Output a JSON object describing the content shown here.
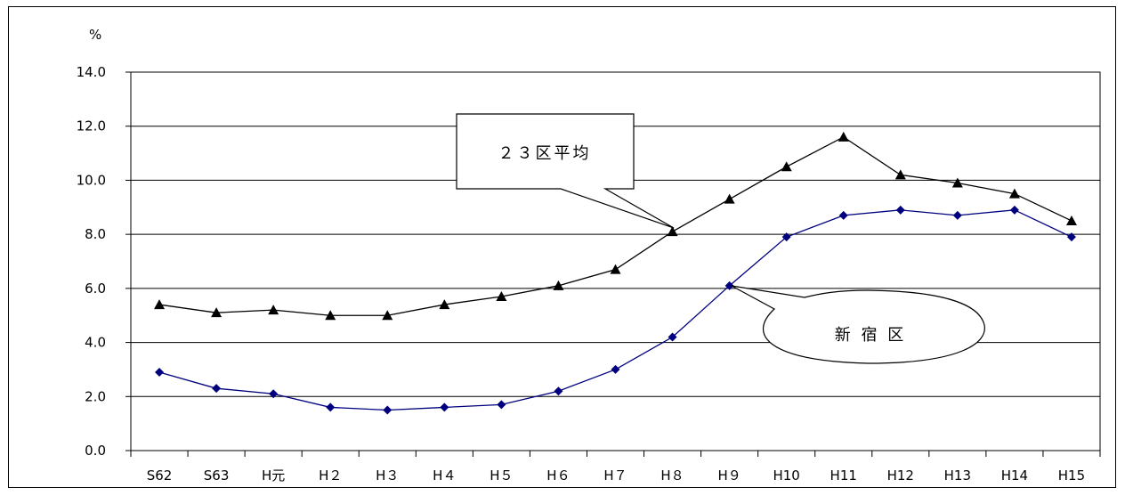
{
  "chart_data": {
    "type": "line",
    "categories": [
      "S62",
      "S63",
      "H元",
      "H２",
      "H３",
      "H４",
      "H５",
      "H６",
      "H７",
      "H８",
      "H９",
      "H10",
      "H11",
      "H12",
      "H13",
      "H14",
      "H15"
    ],
    "series": [
      {
        "name": "２３区平均",
        "values": [
          5.4,
          5.1,
          5.2,
          5.0,
          5.0,
          5.4,
          5.7,
          6.1,
          6.7,
          8.1,
          9.3,
          10.5,
          11.6,
          10.2,
          9.9,
          9.5,
          8.5
        ],
        "color": "#000000",
        "marker": "triangle"
      },
      {
        "name": "新 宿 区",
        "values": [
          2.9,
          2.3,
          2.1,
          1.6,
          1.5,
          1.6,
          1.7,
          2.2,
          3.0,
          4.2,
          6.1,
          7.9,
          8.7,
          8.9,
          8.7,
          8.9,
          7.9
        ],
        "color": "#00007f",
        "marker": "diamond"
      }
    ],
    "ylabel": "%",
    "ylim": [
      0,
      14
    ],
    "yticks": [
      "0.0",
      "2.0",
      "4.0",
      "6.0",
      "8.0",
      "10.0",
      "12.0",
      "14.0"
    ],
    "grid": true,
    "annotations": [
      "２３区平均",
      "新 宿 区"
    ]
  }
}
